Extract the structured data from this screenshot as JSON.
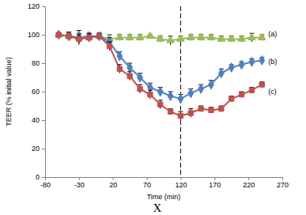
{
  "chart_data": {
    "type": "line",
    "x_label": "Time (min)",
    "y_label": "TEER (% initial value)",
    "annotations": [
      "X"
    ],
    "vline": 120,
    "xlim": [
      -80,
      270
    ],
    "xticks": [
      -80,
      -30,
      20,
      70,
      120,
      170,
      220,
      270
    ],
    "ylim": [
      0,
      120
    ],
    "yticks": [
      0,
      20,
      40,
      60,
      80,
      100,
      120
    ],
    "grid": false,
    "x": [
      -60,
      -45,
      -30,
      -15,
      0,
      15,
      30,
      45,
      60,
      75,
      90,
      105,
      120,
      135,
      150,
      165,
      180,
      195,
      210,
      225,
      240
    ],
    "series": [
      {
        "name": "(a)",
        "color": "#9bbb59",
        "marker": "triangle",
        "values": [
          100,
          99,
          98,
          98,
          99,
          97,
          98,
          98,
          98,
          99,
          97,
          96,
          97,
          98,
          98,
          98,
          97,
          97,
          97,
          98,
          98
        ],
        "errors": [
          1,
          2,
          3,
          2,
          2,
          3,
          2,
          2,
          2,
          1,
          2,
          3,
          2,
          2,
          2,
          2,
          2,
          2,
          2,
          3,
          2
        ]
      },
      {
        "name": "(b)",
        "color": "#4f81bd",
        "marker": "diamond",
        "values": [
          100,
          99,
          98,
          99,
          99,
          95,
          85,
          77,
          70,
          63,
          60,
          57,
          55,
          59,
          62,
          65,
          73,
          77,
          79,
          81,
          82
        ],
        "errors": [
          1,
          3,
          5,
          2,
          2,
          3,
          3,
          3,
          3,
          3,
          3,
          3,
          3,
          3,
          3,
          3,
          3,
          2,
          2,
          2,
          2
        ]
      },
      {
        "name": "(c)",
        "color": "#c0504d",
        "marker": "square",
        "values": [
          100,
          99,
          97,
          98,
          99,
          92,
          76,
          71,
          62,
          58,
          51,
          46,
          43,
          45,
          48,
          47,
          48,
          55,
          58,
          61,
          65
        ],
        "errors": [
          1,
          2,
          3,
          3,
          2,
          3,
          3,
          3,
          3,
          3,
          3,
          2,
          3,
          3,
          2,
          2,
          2,
          2,
          2,
          2,
          2
        ]
      }
    ]
  }
}
